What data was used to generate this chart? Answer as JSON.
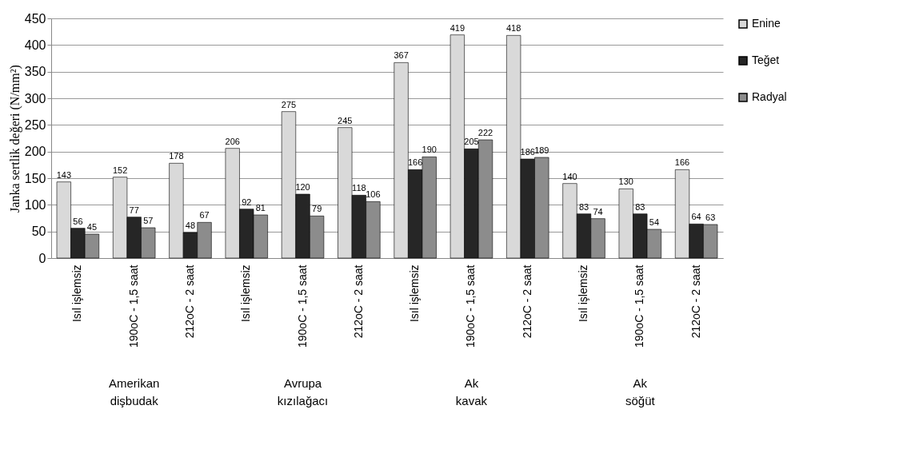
{
  "chart_data": {
    "type": "bar",
    "ylabel": "Janka sertlik değeri (N/mm²)",
    "categories": [
      "Isıl işlemsiz",
      "190oC - 1,5 saat",
      "212oC - 2 saat",
      "Isıl işlemsiz",
      "190oC - 1,5 saat",
      "212oC - 2 saat",
      "Isıl işlemsiz",
      "190oC - 1,5 saat",
      "212oC - 2 saat",
      "Isıl işlemsiz",
      "190oC - 1,5 saat",
      "212oC - 2 saat"
    ],
    "series": [
      {
        "name": "Enine",
        "color": "#d9d9d9",
        "values": [
          143,
          152,
          178,
          206,
          275,
          245,
          367,
          419,
          418,
          140,
          130,
          166
        ]
      },
      {
        "name": "Teğet",
        "color": "#262626",
        "values": [
          56,
          77,
          48,
          92,
          120,
          118,
          166,
          205,
          186,
          83,
          83,
          64
        ]
      },
      {
        "name": "Radyal",
        "color": "#8c8c8c",
        "values": [
          45,
          57,
          67,
          81,
          79,
          106,
          190,
          222,
          189,
          74,
          54,
          63
        ]
      }
    ],
    "annotations": [
      "Amerikan\ndişbudak",
      "Avrupa\nkızılağacı",
      "Ak\nkavak",
      "Ak\nsöğüt"
    ],
    "ylim": [
      0,
      450
    ],
    "yticks": [
      0,
      50,
      100,
      150,
      200,
      250,
      300,
      350,
      400,
      450
    ],
    "grid": "y",
    "legend": "right",
    "data_labels": true
  }
}
